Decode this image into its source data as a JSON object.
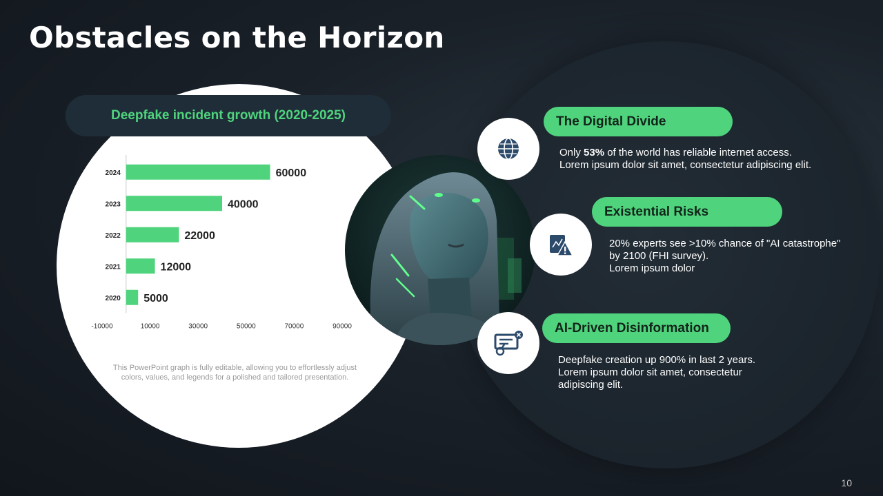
{
  "title": "Obstacles on the Horizon",
  "chart_pill": {
    "label": "Deepfake incident growth (2020-2025)"
  },
  "chart_data": {
    "type": "bar",
    "orientation": "horizontal",
    "categories": [
      "2020",
      "2021",
      "2022",
      "2023",
      "2024"
    ],
    "values": [
      5000,
      12000,
      22000,
      40000,
      60000
    ],
    "value_labels": [
      "5000",
      "12000",
      "22000",
      "40000",
      "60000"
    ],
    "x_ticks": [
      "-10000",
      "10000",
      "30000",
      "50000",
      "70000",
      "90000"
    ],
    "xlim": [
      -10000,
      90000
    ],
    "grid": false,
    "bar_color": "#4fd47d"
  },
  "caption": "This PowerPoint graph is fully editable, allowing you to effortlessly adjust colors, values, and legends for a polished and tailored presentation.",
  "cards": [
    {
      "title": "The Digital Divide",
      "icon": "globe-icon",
      "line1_pre": "Only ",
      "line1_bold": "53%",
      "line1_post": " of the world has reliable internet access.",
      "line2": "Lorem ipsum dolor sit amet, consectetur adipiscing elit."
    },
    {
      "title": "Existential Risks",
      "icon": "risk-chart-warning-icon",
      "line1": "20% experts see >10% chance of \"AI catastrophe\"",
      "line2": "by 2100 (FHI survey).",
      "line3": "Lorem ipsum dolor"
    },
    {
      "title": "AI-Driven Disinformation",
      "icon": "fake-document-icon",
      "line1": "Deepfake creation up 900% in last 2 years.",
      "line2": "Lorem ipsum dolor sit amet, consectetur",
      "line3": "adipiscing elit."
    }
  ],
  "colors": {
    "accent": "#4fd47d",
    "background": "#1a2129",
    "pill_dark": "#1f2d39",
    "icon_navy": "#2c4a6a"
  },
  "page_number": "10"
}
